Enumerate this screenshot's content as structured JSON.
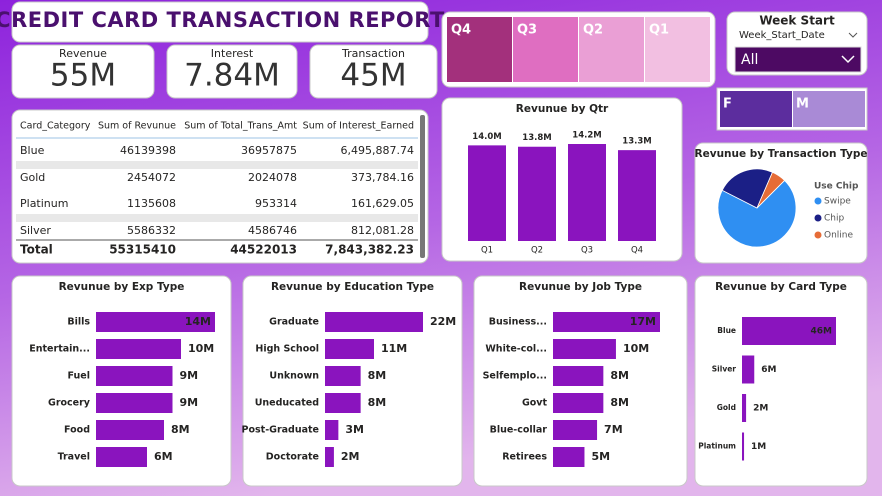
{
  "header": {
    "title": "CREDIT  CARD TRANSACTION  REPORT"
  },
  "kpis": [
    {
      "label": "Revenue",
      "value": "55M"
    },
    {
      "label": "Interest",
      "value": "7.84M"
    },
    {
      "label": "Transaction",
      "value": "45M"
    }
  ],
  "quarter_slicer": {
    "items": [
      "Q4",
      "Q3",
      "Q2",
      "Q1"
    ]
  },
  "week_slicer": {
    "title": "Week Start",
    "field": "Week_Start_Date",
    "selected": "All"
  },
  "gender_slicer": {
    "items": [
      "F",
      "M"
    ]
  },
  "table": {
    "columns": [
      "Card_Category",
      "Sum of Revunue",
      "Sum of Total_Trans_Amt",
      "Sum of Interest_Earned"
    ],
    "rows": [
      [
        "Blue",
        "46139398",
        "36957875",
        "6,495,887.74"
      ],
      [
        "Gold",
        "2454072",
        "2024078",
        "373,784.16"
      ],
      [
        "Platinum",
        "1135608",
        "953314",
        "161,629.05"
      ],
      [
        "Silver",
        "5586332",
        "4586746",
        "812,081.28"
      ]
    ],
    "total": [
      "Total",
      "55315410",
      "44522013",
      "7,843,382.23"
    ]
  },
  "chart_data": [
    {
      "type": "bar",
      "title": "Revunue by Qtr",
      "categories": [
        "Q1",
        "Q2",
        "Q3",
        "Q4"
      ],
      "values": [
        14.0,
        13.8,
        14.2,
        13.3
      ],
      "value_labels": [
        "14.0M",
        "13.8M",
        "14.2M",
        "13.3M"
      ],
      "color": "#8a14be"
    },
    {
      "type": "pie",
      "title": "Revunue by Transaction Type",
      "legend_title": "Use Chip",
      "categories": [
        "Swipe",
        "Chip",
        "Online"
      ],
      "values": [
        70,
        24,
        6
      ],
      "colors": [
        "#2f8ff2",
        "#1b1f86",
        "#e66c37"
      ]
    },
    {
      "type": "hbar",
      "title": "Revunue by Exp Type",
      "categories": [
        "Bills",
        "Entertain...",
        "Fuel",
        "Grocery",
        "Food",
        "Travel"
      ],
      "values": [
        14,
        10,
        9,
        9,
        8,
        6
      ],
      "value_labels": [
        "14M",
        "10M",
        "9M",
        "9M",
        "8M",
        "6M"
      ],
      "color": "#8a14be"
    },
    {
      "type": "hbar",
      "title": "Revunue by Education Type",
      "categories": [
        "Graduate",
        "High School",
        "Unknown",
        "Uneducated",
        "Post-Graduate",
        "Doctorate"
      ],
      "values": [
        22,
        11,
        8,
        8,
        3,
        2
      ],
      "value_labels": [
        "22M",
        "11M",
        "8M",
        "8M",
        "3M",
        "2M"
      ],
      "color": "#8a14be"
    },
    {
      "type": "hbar",
      "title": "Revunue by Job Type",
      "categories": [
        "Business...",
        "White-col...",
        "Selfemplo...",
        "Govt",
        "Blue-collar",
        "Retirees"
      ],
      "values": [
        17,
        10,
        8,
        8,
        7,
        5
      ],
      "value_labels": [
        "17M",
        "10M",
        "8M",
        "8M",
        "7M",
        "5M"
      ],
      "color": "#8a14be"
    },
    {
      "type": "hbar",
      "title": "Revunue by Card Type",
      "categories": [
        "Blue",
        "Silver",
        "Gold",
        "Platinum"
      ],
      "values": [
        46,
        6,
        2,
        1
      ],
      "value_labels": [
        "46M",
        "6M",
        "2M",
        "1M"
      ],
      "color": "#8a14be"
    }
  ]
}
